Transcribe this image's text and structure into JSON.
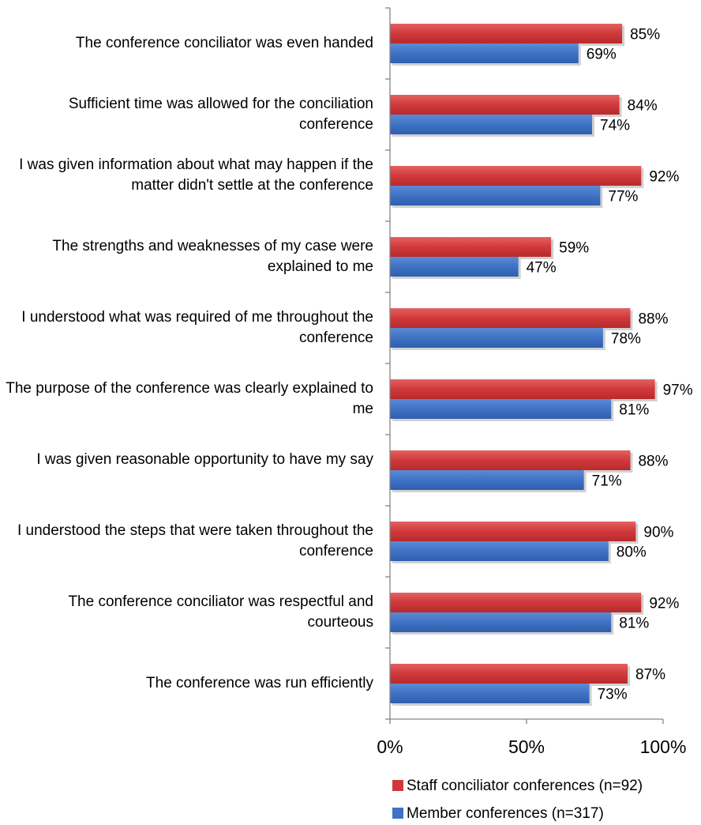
{
  "chart_data": {
    "type": "bar",
    "orientation": "horizontal",
    "categories": [
      "The conference conciliator was even handed",
      "Sufficient time was allowed for the conciliation conference",
      "I was given information about what may happen if the matter didn't settle at the conference",
      "The strengths and weaknesses of my case were explained to me",
      "I understood what was required of me throughout the conference",
      "The purpose of the conference was clearly explained to me",
      "I was given reasonable opportunity to have my say",
      "I understood the steps that were taken throughout the conference",
      "The conference conciliator was respectful and courteous",
      "The conference was run efficiently"
    ],
    "series": [
      {
        "name": "Staff conciliator conferences (n=92)",
        "color": "#d0393b",
        "values": [
          85,
          84,
          92,
          59,
          88,
          97,
          88,
          90,
          92,
          87
        ],
        "labels": [
          "85%",
          "84%",
          "92%",
          "59%",
          "88%",
          "97%",
          "88%",
          "90%",
          "92%",
          "87%"
        ]
      },
      {
        "name": "Member conferences (n=317)",
        "color": "#3f72c4",
        "values": [
          69,
          74,
          77,
          47,
          78,
          81,
          71,
          80,
          81,
          73
        ],
        "labels": [
          "69%",
          "74%",
          "77%",
          "47%",
          "78%",
          "81%",
          "71%",
          "80%",
          "81%",
          "73%"
        ]
      }
    ],
    "xlim": [
      0,
      100
    ],
    "xticks": [
      0,
      50,
      100
    ],
    "xtick_labels": [
      "0%",
      "50%",
      "100%"
    ],
    "grid": false,
    "legend_position": "bottom-right"
  }
}
